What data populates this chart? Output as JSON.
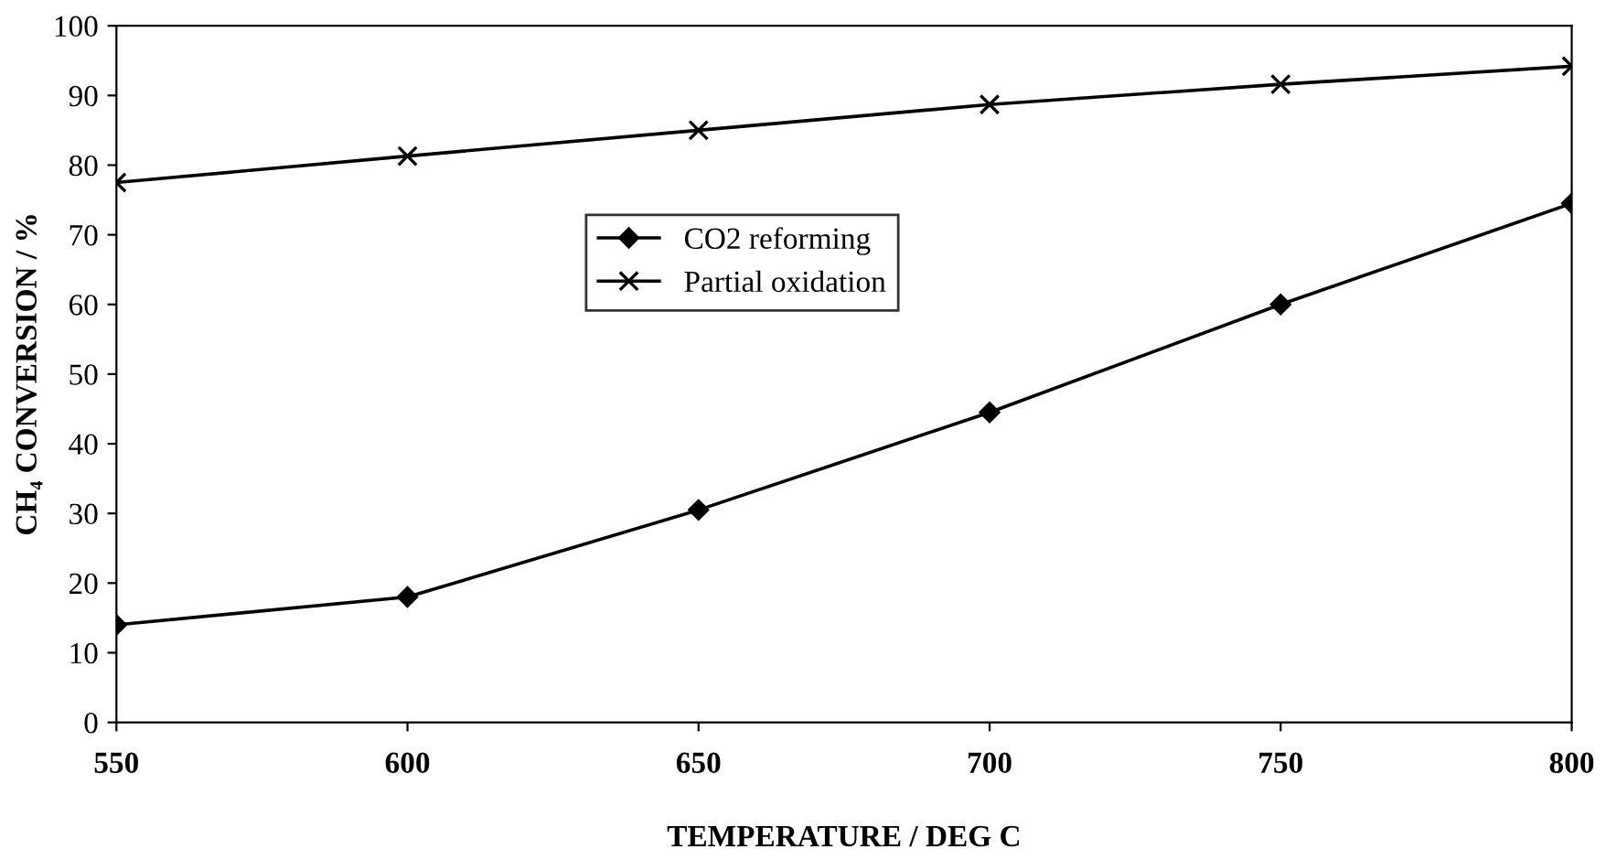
{
  "chart_data": {
    "type": "line",
    "xlabel": "TEMPERATURE / DEG C",
    "ylabel": "CH₄ CONVERSION / %",
    "x": [
      550,
      600,
      650,
      700,
      750,
      800
    ],
    "series": [
      {
        "name": "CO2 reforming",
        "color": "#000000",
        "marker": "diamond",
        "values": [
          14,
          18,
          30.5,
          44.5,
          60,
          74.5
        ]
      },
      {
        "name": "Partial oxidation",
        "color": "#000000",
        "marker": "cross",
        "values": [
          77.5,
          81.3,
          85,
          88.7,
          91.6,
          94.2
        ]
      }
    ],
    "xlim": [
      550,
      800
    ],
    "xticks": [
      550,
      600,
      650,
      700,
      750,
      800
    ],
    "ylim": [
      0,
      100
    ],
    "yticks": [
      0,
      10,
      20,
      30,
      40,
      50,
      60,
      70,
      80,
      90,
      100
    ],
    "grid": false,
    "legend": "center",
    "line_style": "solid"
  }
}
